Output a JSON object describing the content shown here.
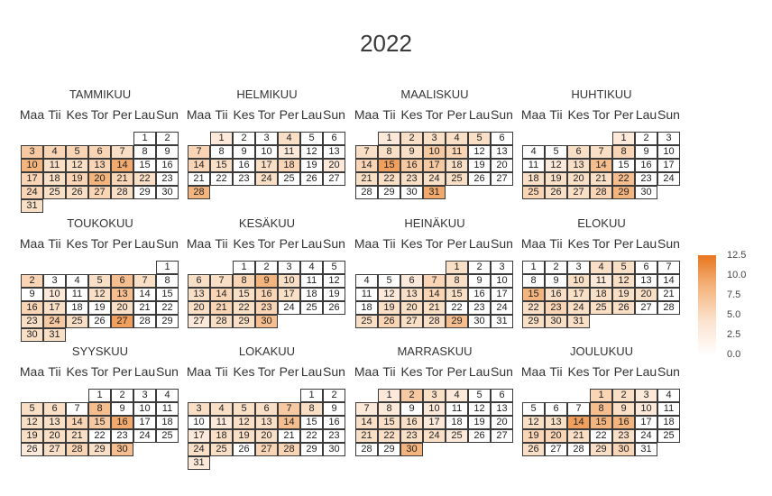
{
  "chart_data": {
    "type": "heatmap",
    "title": "2022",
    "year": 2022,
    "weekday_labels": [
      "Maa",
      "Tii",
      "Kes",
      "Tor",
      "Per",
      "Lau",
      "Sun"
    ],
    "legend": {
      "min": 0,
      "max": 13,
      "ticks": [
        "12.5",
        "10.0",
        "7.5",
        "5.0",
        "2.5",
        "0.0"
      ]
    },
    "colors": {
      "low": "#ffffff",
      "mid": "#f4b27a",
      "high": "#e8761f",
      "border": "#3a3a3a"
    },
    "months": [
      {
        "name": "TAMMIKUU",
        "start_weekday": 5,
        "days": 31,
        "values": [
          0,
          0,
          5,
          4,
          4,
          4,
          3,
          0,
          0,
          7,
          3,
          3,
          4,
          8,
          0,
          0,
          4,
          3,
          4,
          7,
          4,
          3,
          0,
          4,
          3,
          3,
          4,
          3,
          0,
          0,
          3
        ]
      },
      {
        "name": "HELMIKUU",
        "start_weekday": 1,
        "days": 28,
        "values": [
          2,
          0,
          0,
          3,
          0,
          0,
          4,
          0,
          0,
          0,
          2,
          0,
          0,
          4,
          3,
          0,
          3,
          4,
          0,
          2,
          0,
          0,
          0,
          3,
          0,
          0,
          0,
          7
        ]
      },
      {
        "name": "MAALISKUU",
        "start_weekday": 1,
        "days": 31,
        "values": [
          2,
          3,
          3,
          3,
          3,
          0,
          3,
          3,
          3,
          5,
          4,
          0,
          0,
          4,
          9,
          5,
          5,
          3,
          0,
          0,
          3,
          3,
          3,
          3,
          3,
          0,
          0,
          0,
          0,
          0,
          8
        ]
      },
      {
        "name": "HUHTIKUU",
        "start_weekday": 4,
        "days": 30,
        "values": [
          2,
          0,
          0,
          0,
          0,
          3,
          3,
          4,
          0,
          0,
          0,
          2,
          3,
          6,
          0,
          0,
          0,
          3,
          3,
          3,
          3,
          6,
          0,
          0,
          4,
          3,
          3,
          4,
          7,
          0
        ]
      },
      {
        "name": "TOUKOKUU",
        "start_weekday": 6,
        "days": 31,
        "values": [
          0,
          4,
          0,
          0,
          3,
          6,
          3,
          0,
          0,
          2,
          0,
          3,
          6,
          0,
          0,
          4,
          3,
          0,
          0,
          3,
          0,
          0,
          3,
          5,
          3,
          0,
          9,
          0,
          0,
          3,
          3
        ]
      },
      {
        "name": "KESÄKUU",
        "start_weekday": 2,
        "days": 30,
        "values": [
          0,
          0,
          0,
          0,
          0,
          3,
          3,
          4,
          7,
          3,
          0,
          0,
          3,
          4,
          3,
          4,
          3,
          0,
          0,
          3,
          4,
          3,
          4,
          0,
          0,
          0,
          2,
          3,
          3,
          6
        ]
      },
      {
        "name": "HEINÄKUU",
        "start_weekday": 4,
        "days": 31,
        "values": [
          3,
          0,
          0,
          0,
          0,
          2,
          4,
          3,
          0,
          0,
          0,
          2,
          3,
          4,
          3,
          0,
          0,
          0,
          3,
          3,
          3,
          0,
          0,
          0,
          3,
          4,
          3,
          3,
          6,
          0,
          0
        ]
      },
      {
        "name": "ELOKUU",
        "start_weekday": 0,
        "days": 31,
        "values": [
          0,
          0,
          0,
          3,
          3,
          0,
          0,
          0,
          0,
          3,
          2,
          3,
          0,
          0,
          7,
          3,
          3,
          3,
          3,
          3,
          0,
          3,
          4,
          3,
          3,
          3,
          0,
          0,
          3,
          3,
          3
        ]
      },
      {
        "name": "SYYSKUU",
        "start_weekday": 3,
        "days": 30,
        "values": [
          0,
          0,
          0,
          0,
          3,
          3,
          0,
          6,
          0,
          0,
          0,
          3,
          3,
          4,
          5,
          8,
          0,
          0,
          3,
          3,
          3,
          0,
          0,
          0,
          0,
          2,
          3,
          4,
          3,
          6
        ]
      },
      {
        "name": "LOKAKUU",
        "start_weekday": 5,
        "days": 31,
        "values": [
          0,
          0,
          3,
          3,
          3,
          3,
          5,
          3,
          0,
          0,
          2,
          3,
          3,
          6,
          0,
          0,
          2,
          3,
          3,
          3,
          0,
          0,
          0,
          3,
          3,
          0,
          4,
          4,
          0,
          0,
          2
        ]
      },
      {
        "name": "MARRASKUU",
        "start_weekday": 1,
        "days": 30,
        "values": [
          2,
          5,
          3,
          2,
          0,
          0,
          2,
          2,
          0,
          2,
          0,
          0,
          0,
          3,
          3,
          3,
          2,
          0,
          0,
          0,
          3,
          3,
          3,
          3,
          2,
          0,
          0,
          0,
          0,
          7
        ]
      },
      {
        "name": "JOULUKUU",
        "start_weekday": 3,
        "days": 31,
        "values": [
          4,
          3,
          2,
          0,
          0,
          0,
          0,
          6,
          3,
          2,
          0,
          3,
          3,
          9,
          7,
          7,
          0,
          0,
          4,
          4,
          3,
          0,
          3,
          0,
          0,
          3,
          0,
          0,
          3,
          4,
          0
        ]
      }
    ]
  }
}
